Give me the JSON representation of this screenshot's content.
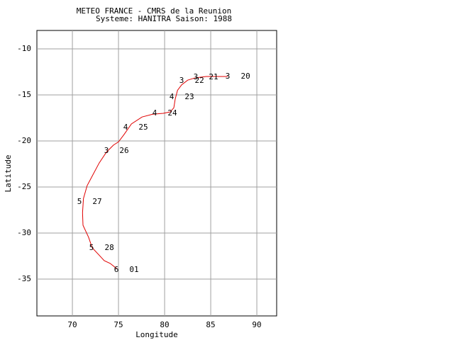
{
  "chart_data": {
    "type": "line",
    "title": "METEO FRANCE - CMRS de la Reunion",
    "subtitle": "Systeme: HANITRA  Saison: 1988",
    "x_label": "Longitude",
    "y_label": "Latitude",
    "xlim": [
      66.15,
      92.15
    ],
    "ylim": [
      -39,
      -8
    ],
    "xticks": [
      70,
      75,
      80,
      85,
      90
    ],
    "yticks": [
      -10,
      -15,
      -20,
      -25,
      -30,
      -35
    ],
    "grid": true,
    "grid_color": "#a0a0a0",
    "track": {
      "color": "#e00000",
      "x": [
        86.85,
        84.5,
        83.3,
        82.5,
        81.85,
        81.4,
        81.15,
        81.0,
        80.6,
        79.85,
        78.7,
        77.55,
        76.4,
        75.6,
        75.0,
        74.45,
        73.7,
        72.9,
        71.6,
        71.2,
        71.1,
        71.15,
        71.75,
        72.15,
        72.9,
        73.45,
        74.1,
        74.85
      ],
      "y": [
        -13.0,
        -13.0,
        -13.15,
        -13.4,
        -13.9,
        -14.5,
        -15.45,
        -16.4,
        -16.85,
        -17.0,
        -17.1,
        -17.4,
        -18.15,
        -19.3,
        -20.1,
        -20.45,
        -21.2,
        -22.4,
        -24.85,
        -26.25,
        -27.8,
        -29.15,
        -30.45,
        -31.6,
        -32.4,
        -33.0,
        -33.3,
        -33.9
      ]
    },
    "points": {
      "x": [
        86.85,
        83.38,
        81.85,
        80.77,
        78.92,
        75.77,
        73.69,
        70.77,
        72.08,
        74.77
      ],
      "y": [
        -13.0,
        -13.08,
        -13.46,
        -15.23,
        -17.0,
        -18.54,
        -21.08,
        -26.62,
        -31.62,
        -34.0
      ],
      "intensity": [
        3,
        3,
        3,
        4,
        4,
        4,
        3,
        5,
        5,
        6
      ],
      "dates": [
        "20",
        "21",
        "22",
        "23",
        "24",
        "25",
        "26",
        "27",
        "28",
        "01"
      ]
    }
  }
}
